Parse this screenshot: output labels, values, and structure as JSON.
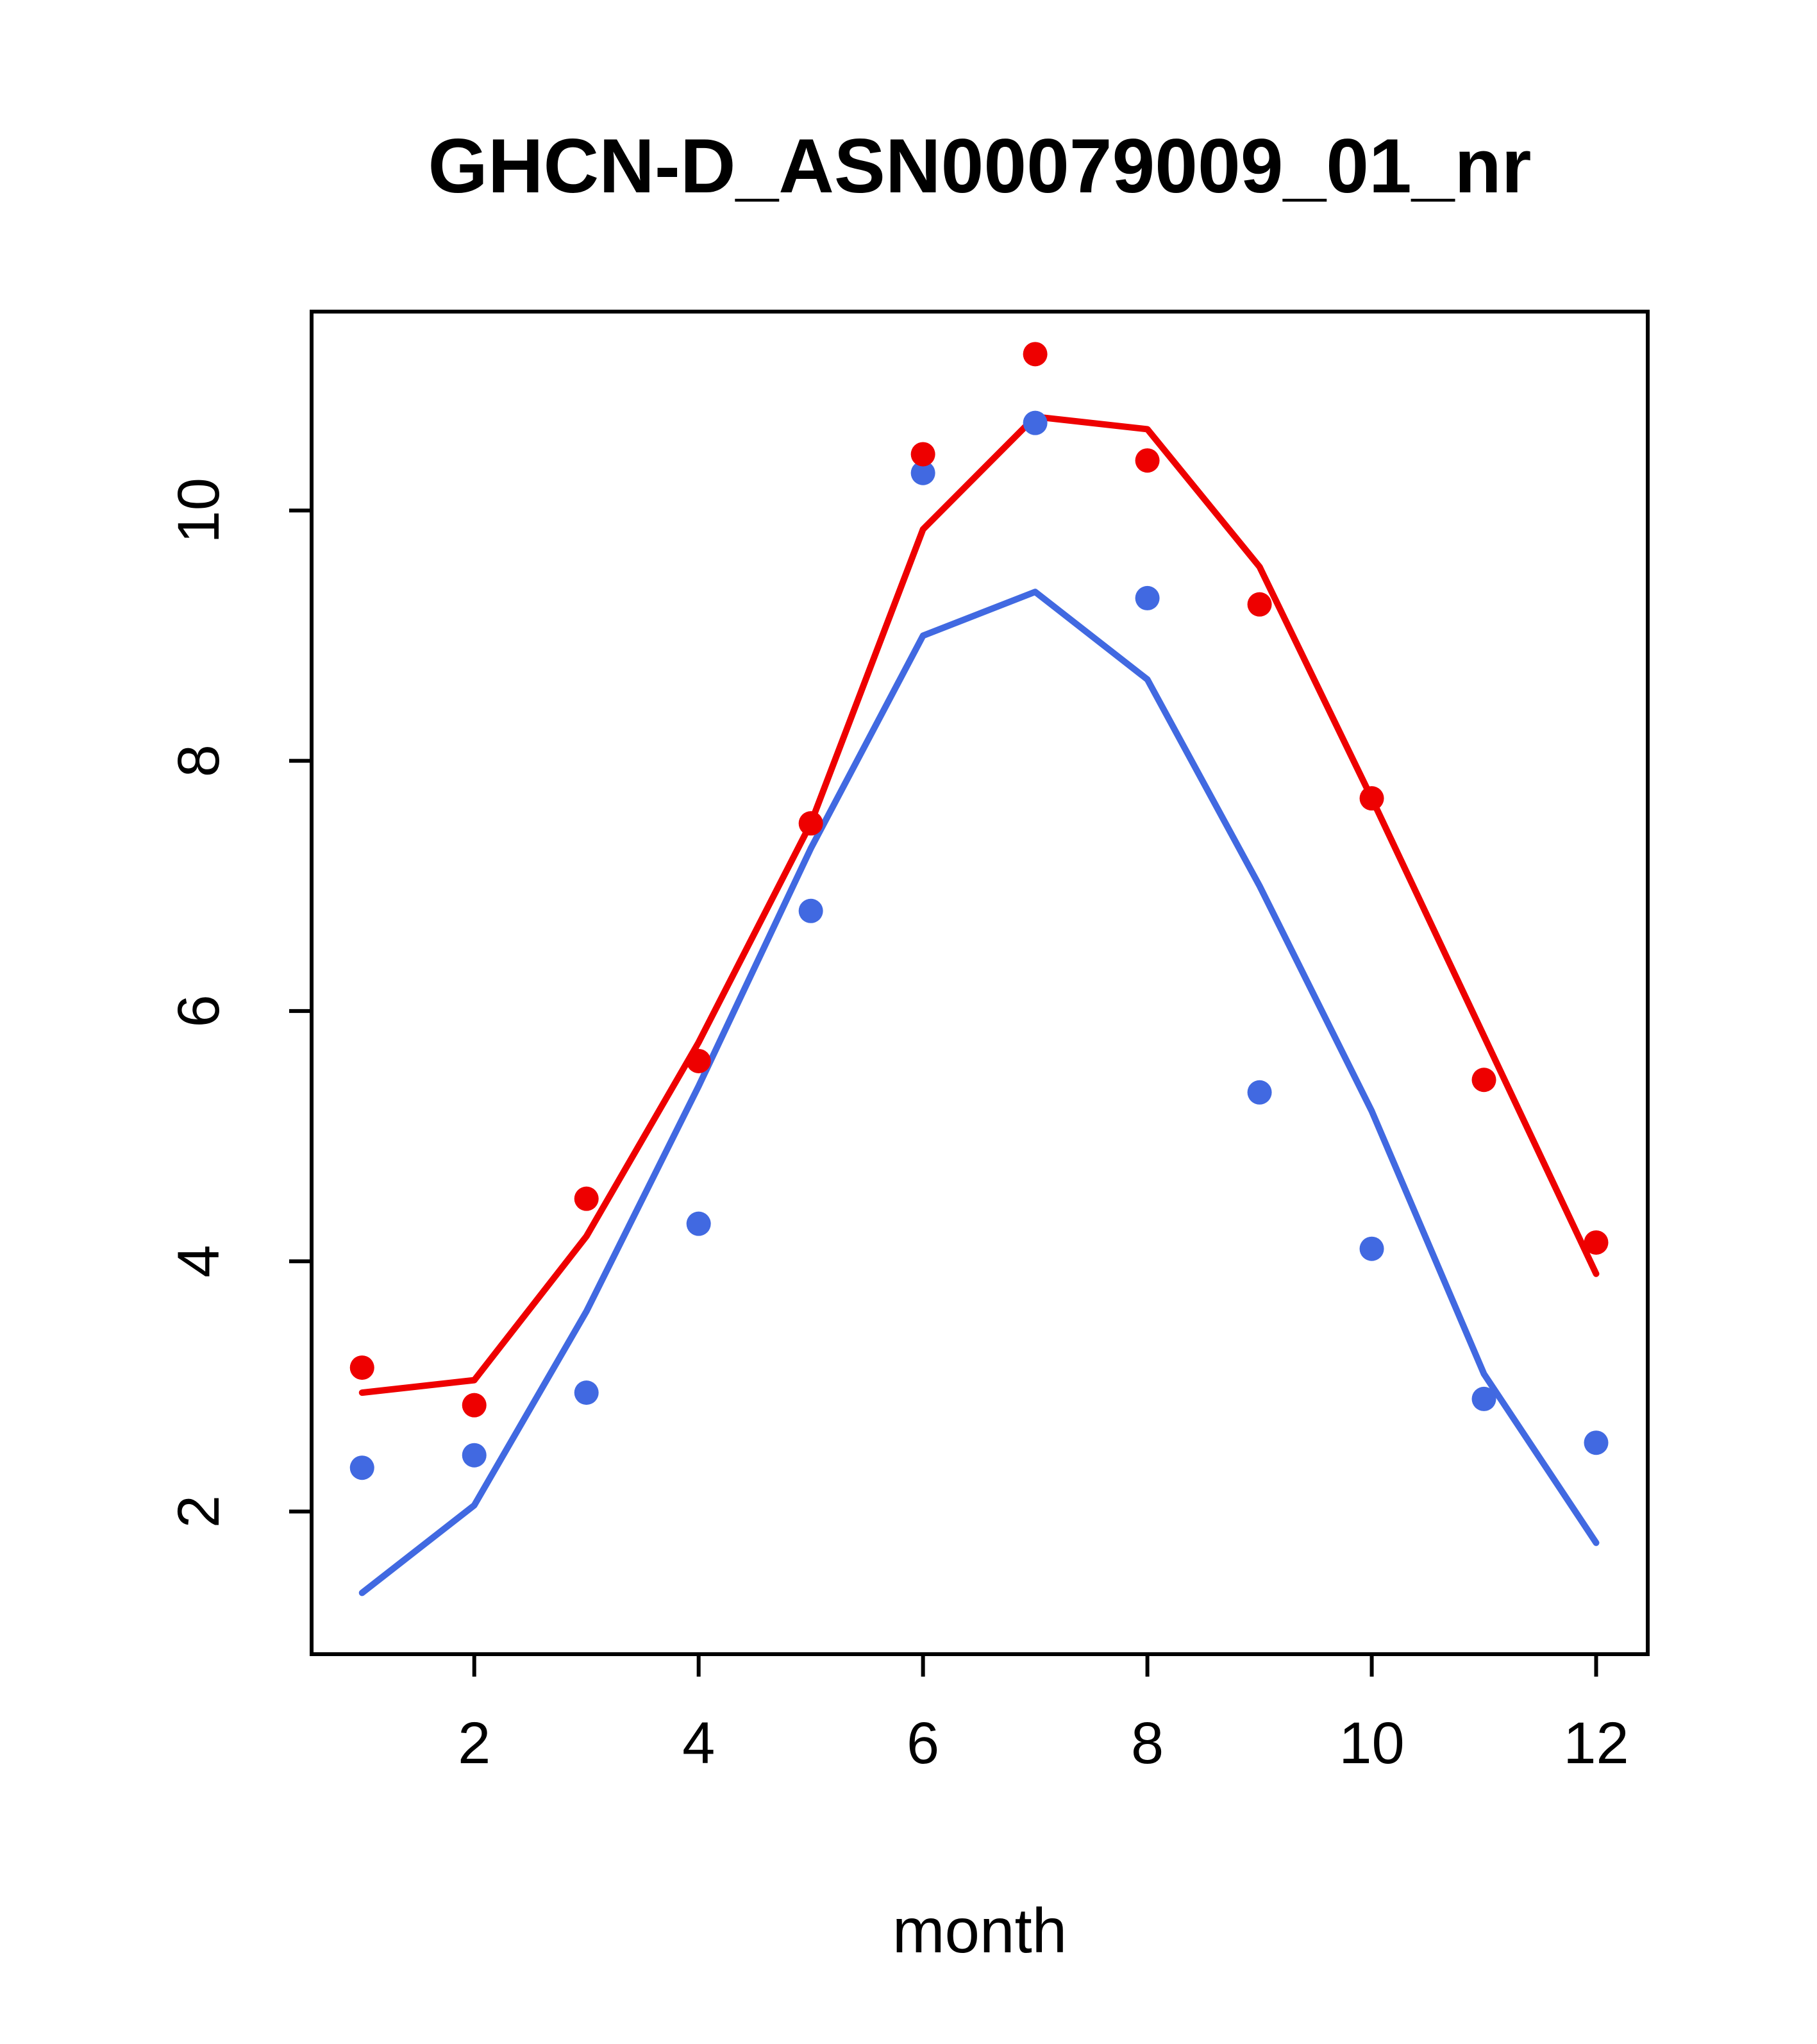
{
  "chart_data": {
    "type": "line",
    "title": "GHCN-D_ASN00079009_01_nr",
    "xlabel": "month",
    "ylabel": "",
    "x": [
      1,
      2,
      3,
      4,
      5,
      6,
      7,
      8,
      9,
      10,
      11,
      12
    ],
    "xticks": [
      2,
      4,
      6,
      8,
      10,
      12
    ],
    "yticks": [
      2,
      4,
      6,
      8,
      10
    ],
    "xlim": [
      0.55,
      12.46
    ],
    "ylim": [
      0.86,
      11.59
    ],
    "grid": false,
    "legend": "none",
    "colors": {
      "red": "#ee0000",
      "blue": "#4169e1",
      "axis": "#000000",
      "background": "#ffffff"
    },
    "series": [
      {
        "name": "blue-line",
        "style": "line",
        "color": "#4169e1",
        "values": [
          1.35,
          2.05,
          3.6,
          5.4,
          7.3,
          9.0,
          9.35,
          8.65,
          7.0,
          5.2,
          3.1,
          1.75
        ]
      },
      {
        "name": "red-line",
        "style": "line",
        "color": "#ee0000",
        "values": [
          2.95,
          3.05,
          4.2,
          5.75,
          7.5,
          9.85,
          10.75,
          10.65,
          9.55,
          7.7,
          5.8,
          3.9
        ]
      },
      {
        "name": "blue-points",
        "style": "points",
        "color": "#4169e1",
        "values": [
          2.35,
          2.45,
          2.95,
          4.3,
          6.8,
          10.3,
          10.7,
          9.3,
          5.35,
          4.1,
          2.9,
          2.55
        ]
      },
      {
        "name": "red-points",
        "style": "points",
        "color": "#ee0000",
        "values": [
          3.15,
          2.85,
          4.5,
          5.6,
          7.5,
          10.45,
          11.25,
          10.4,
          9.25,
          7.7,
          5.45,
          4.15
        ]
      }
    ]
  }
}
